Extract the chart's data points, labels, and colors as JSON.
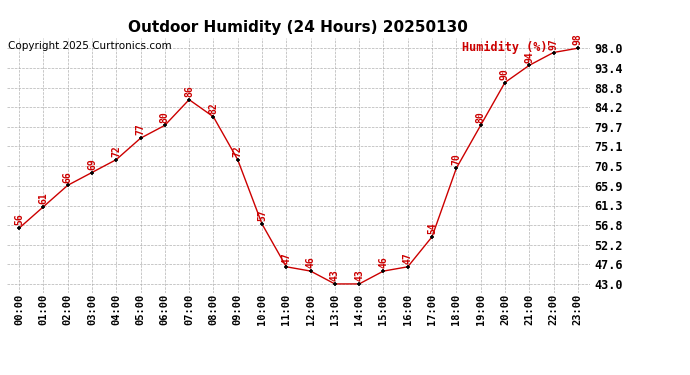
{
  "title": "Outdoor Humidity (24 Hours) 20250130",
  "copyright": "Copyright 2025 Curtronics.com",
  "ylabel": "Humidity (%)",
  "hours": [
    "00:00",
    "01:00",
    "02:00",
    "03:00",
    "04:00",
    "05:00",
    "06:00",
    "07:00",
    "08:00",
    "09:00",
    "10:00",
    "11:00",
    "12:00",
    "13:00",
    "14:00",
    "15:00",
    "16:00",
    "17:00",
    "18:00",
    "19:00",
    "20:00",
    "21:00",
    "22:00",
    "23:00"
  ],
  "values": [
    56,
    61,
    66,
    69,
    72,
    77,
    80,
    86,
    82,
    72,
    57,
    47,
    46,
    43,
    43,
    46,
    47,
    54,
    70,
    80,
    90,
    94,
    97,
    98
  ],
  "line_color": "#cc0000",
  "marker_color": "#000000",
  "label_color": "#cc0000",
  "ylabel_color": "#cc0000",
  "ytick_labels": [
    "43.0",
    "47.6",
    "52.2",
    "56.8",
    "61.3",
    "65.9",
    "70.5",
    "75.1",
    "79.7",
    "84.2",
    "88.8",
    "93.4",
    "98.0"
  ],
  "ytick_values": [
    43.0,
    47.6,
    52.2,
    56.8,
    61.3,
    65.9,
    70.5,
    75.1,
    79.7,
    84.2,
    88.8,
    93.4,
    98.0
  ],
  "ylim": [
    41.0,
    100.5
  ],
  "background_color": "#ffffff",
  "grid_color": "#aaaaaa",
  "title_fontsize": 11,
  "copyright_fontsize": 7.5,
  "ylabel_fontsize": 8.5,
  "data_label_fontsize": 7,
  "tick_fontsize": 7.5,
  "ytick_fontsize": 8.5
}
